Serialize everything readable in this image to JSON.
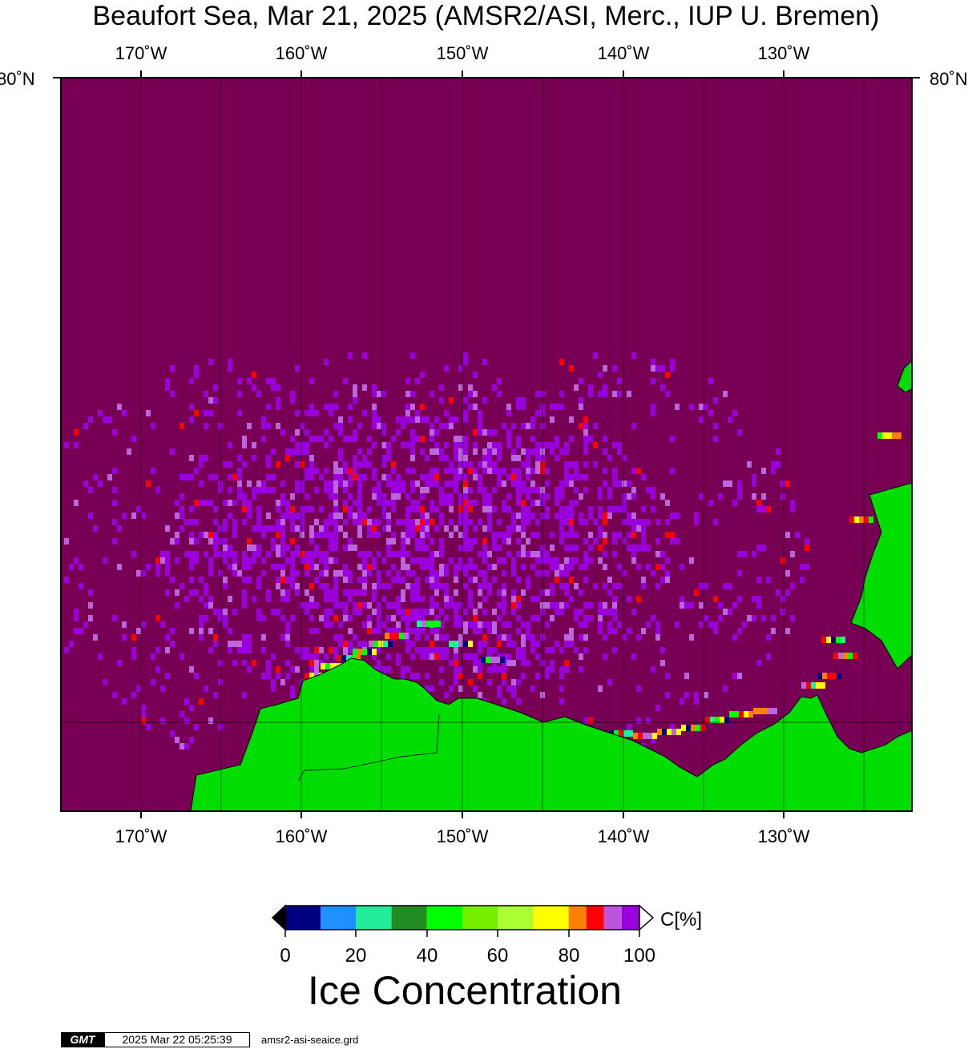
{
  "title": "Beaufort Sea, Mar 21, 2025 (AMSR2/ASI, Merc., IUP U. Bremen)",
  "map": {
    "projection": "Mercator",
    "lon_labels": [
      "170˚W",
      "160˚W",
      "150˚W",
      "140˚W",
      "130˚W"
    ],
    "lat_label": "80˚N",
    "colors": {
      "ocean_open": "#770055",
      "land": "#00dd00",
      "ice_high": "#9900dd",
      "ice_mid": "#bb66dd",
      "coast": "#000000",
      "grid": "#000000"
    }
  },
  "colorbar": {
    "ticks": [
      "0",
      "20",
      "40",
      "60",
      "80",
      "100"
    ],
    "unit": "C[%]",
    "segments": [
      {
        "range": "0-10",
        "color": "#000080"
      },
      {
        "range": "10-20",
        "color": "#1e90ff"
      },
      {
        "range": "20-30",
        "color": "#22ee99"
      },
      {
        "range": "30-40",
        "color": "#228b22"
      },
      {
        "range": "40-50",
        "color": "#00ff00"
      },
      {
        "range": "50-60",
        "color": "#77ee00"
      },
      {
        "range": "60-70",
        "color": "#aaff33"
      },
      {
        "range": "70-80",
        "color": "#ffff00"
      },
      {
        "range": "80-85",
        "color": "#ff8000"
      },
      {
        "range": "85-90",
        "color": "#ff0000"
      },
      {
        "range": "90-95",
        "color": "#bb55dd"
      },
      {
        "range": "95-100",
        "color": "#9900dd"
      }
    ],
    "under_color": "#000000",
    "over_color": "#ffffff"
  },
  "quantity_label": "Ice Concentration",
  "footer": {
    "gmt_logo": "GMT",
    "timestamp": "2025 Mar 22 05:25:39",
    "grid_file": "amsr2-asi-seaice.grd"
  }
}
